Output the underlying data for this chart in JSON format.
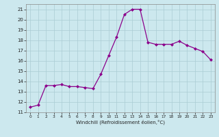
{
  "x": [
    0,
    1,
    2,
    3,
    4,
    5,
    6,
    7,
    8,
    9,
    10,
    11,
    12,
    13,
    14,
    15,
    16,
    17,
    18,
    19,
    20,
    21,
    22,
    23
  ],
  "y": [
    11.5,
    11.7,
    13.6,
    13.6,
    13.7,
    13.5,
    13.5,
    13.4,
    13.3,
    14.7,
    16.5,
    18.3,
    20.5,
    21.0,
    21.0,
    17.8,
    17.6,
    17.6,
    17.6,
    17.9,
    17.5,
    17.2,
    16.9,
    16.1
  ],
  "line_color": "#8b008b",
  "marker": "D",
  "marker_size": 2.0,
  "bg_color": "#cce8ee",
  "grid_color": "#aaccd4",
  "xlabel": "Windchill (Refroidissement éolien,°C)",
  "ylim": [
    11,
    21.5
  ],
  "xlim": [
    -0.5,
    23.5
  ],
  "yticks": [
    11,
    12,
    13,
    14,
    15,
    16,
    17,
    18,
    19,
    20,
    21
  ],
  "xticks": [
    0,
    1,
    2,
    3,
    4,
    5,
    6,
    7,
    8,
    9,
    10,
    11,
    12,
    13,
    14,
    15,
    16,
    17,
    18,
    19,
    20,
    21,
    22,
    23
  ]
}
